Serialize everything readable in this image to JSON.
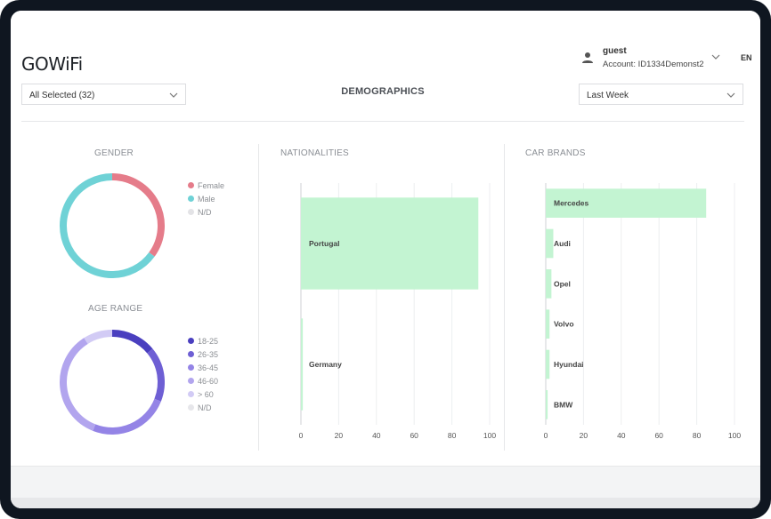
{
  "header": {
    "logo": "GOWiFi",
    "user": {
      "name": "guest",
      "account": "Account: ID1334Demonst2"
    },
    "lang": "EN",
    "groups_select": "All Selected (32)",
    "title": "DEMOGRAPHICS",
    "period_select": "Last Week"
  },
  "gender": {
    "title": "GENDER",
    "legend": [
      {
        "label": "Female",
        "color": "#e57c8a"
      },
      {
        "label": "Male",
        "color": "#6fd2d6"
      },
      {
        "label": "N/D",
        "color": "#e3e3e6"
      }
    ],
    "values": [
      35,
      65,
      0
    ]
  },
  "age": {
    "title": "AGE RANGE",
    "legend": [
      {
        "label": "18-25",
        "color": "#4a3fbf"
      },
      {
        "label": "26-35",
        "color": "#6e5fd4"
      },
      {
        "label": "36-45",
        "color": "#9484e6"
      },
      {
        "label": "46-60",
        "color": "#b2a5ee"
      },
      {
        "label": "> 60",
        "color": "#d2cbf5"
      },
      {
        "label": "N/D",
        "color": "#e6e6ea"
      }
    ],
    "values": [
      14,
      17,
      25,
      35,
      9,
      0
    ]
  },
  "chart_data": [
    {
      "type": "bar",
      "orientation": "horizontal",
      "title": "NATIONALITIES",
      "categories": [
        "Portugal",
        "Germany"
      ],
      "values": [
        94,
        1
      ],
      "xlim": [
        0,
        100
      ],
      "xticks": [
        0,
        20,
        40,
        60,
        80,
        100
      ],
      "color": "#c3f4d2",
      "grid": true
    },
    {
      "type": "bar",
      "orientation": "horizontal",
      "title": "CAR BRANDS",
      "categories": [
        "Mercedes",
        "Audi",
        "Opel",
        "Volvo",
        "Hyundai",
        "BMW"
      ],
      "values": [
        85,
        4,
        3,
        2,
        2,
        1
      ],
      "xlim": [
        0,
        100
      ],
      "xticks": [
        0,
        20,
        40,
        60,
        80,
        100
      ],
      "color": "#c3f4d2",
      "grid": true
    }
  ]
}
